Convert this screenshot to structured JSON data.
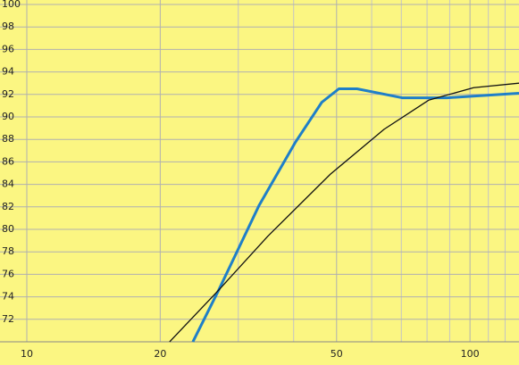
{
  "chart_data": {
    "type": "line",
    "xscale": "log",
    "xlim": [
      10,
      129
    ],
    "ylim": [
      70,
      100
    ],
    "xticks": [
      10,
      20,
      50,
      100
    ],
    "x_minor_grid": [
      30,
      40,
      60,
      70,
      80,
      90,
      110,
      120
    ],
    "yticks": [
      72,
      74,
      76,
      78,
      80,
      82,
      84,
      86,
      88,
      90,
      92,
      94,
      96,
      98,
      100
    ],
    "grid": true,
    "series": [
      {
        "color": "#1f7fc8",
        "width": 3,
        "x": [
          23.7,
          27.1,
          33.4,
          40.3,
          46.3,
          50.6,
          55.6,
          70.3,
          88.7,
          129
        ],
        "values": [
          70,
          74.6,
          82.1,
          87.7,
          91.3,
          92.5,
          92.5,
          91.7,
          91.7,
          92.1
        ]
      },
      {
        "color": "#111111",
        "width": 1.3,
        "x": [
          21.0,
          27.1,
          35.0,
          48.4,
          64.0,
          80.8,
          101.9,
          129
        ],
        "values": [
          70,
          74.6,
          79.4,
          84.9,
          88.9,
          91.5,
          92.6,
          93.0
        ]
      }
    ]
  }
}
